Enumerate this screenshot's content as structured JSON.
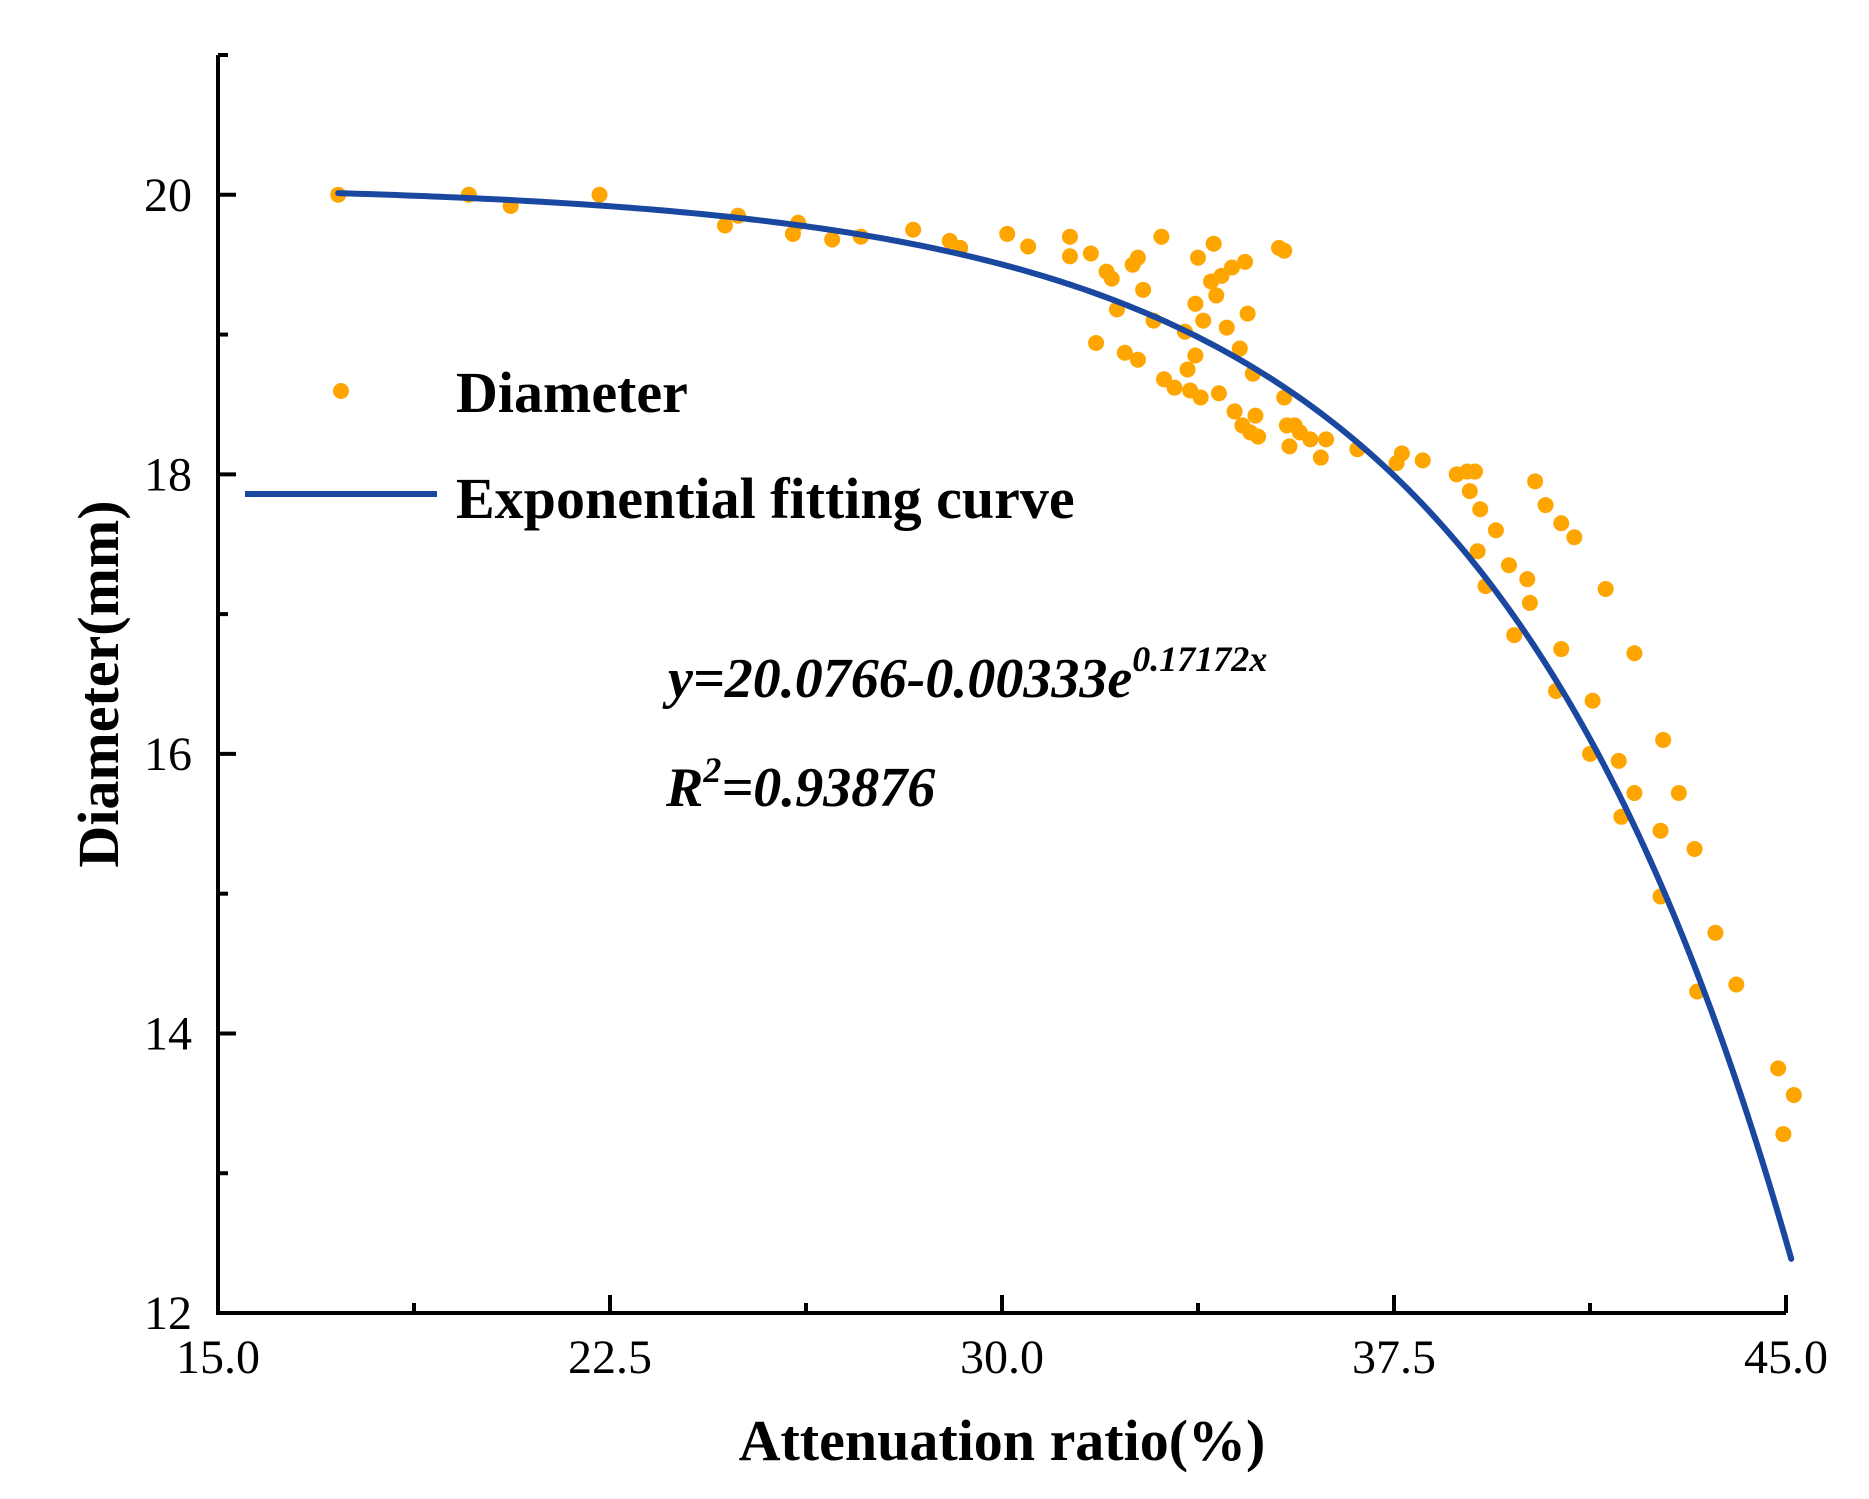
{
  "chart_data": {
    "type": "scatter",
    "title": "",
    "xlabel": "Attenuation ratio(%)",
    "ylabel": "Diameter(mm)",
    "xlim": [
      15.0,
      45.0
    ],
    "ylim": [
      12,
      21
    ],
    "x_ticks": [
      15.0,
      22.5,
      30.0,
      37.5,
      45.0
    ],
    "x_tick_labels": [
      "15.0",
      "22.5",
      "30.0",
      "37.5",
      "45.0"
    ],
    "y_ticks": [
      12,
      14,
      16,
      18,
      20
    ],
    "y_tick_labels": [
      "12",
      "14",
      "16",
      "18",
      "20"
    ],
    "grid": false,
    "legend_position": "upper-left",
    "series": [
      {
        "name": "Diameter",
        "kind": "scatter",
        "color": "#FFA500",
        "points": [
          [
            17.3,
            20.0
          ],
          [
            19.8,
            20.0
          ],
          [
            20.6,
            19.92
          ],
          [
            22.3,
            20.0
          ],
          [
            24.7,
            19.78
          ],
          [
            24.95,
            19.85
          ],
          [
            26.0,
            19.72
          ],
          [
            26.1,
            19.8
          ],
          [
            26.75,
            19.68
          ],
          [
            27.3,
            19.7
          ],
          [
            28.3,
            19.75
          ],
          [
            29.0,
            19.67
          ],
          [
            29.2,
            19.62
          ],
          [
            30.1,
            19.72
          ],
          [
            30.5,
            19.63
          ],
          [
            31.3,
            19.7
          ],
          [
            31.3,
            19.56
          ],
          [
            31.7,
            19.58
          ],
          [
            31.8,
            18.94
          ],
          [
            32.0,
            19.45
          ],
          [
            32.1,
            19.4
          ],
          [
            32.2,
            19.18
          ],
          [
            32.35,
            18.87
          ],
          [
            32.5,
            19.5
          ],
          [
            32.6,
            19.55
          ],
          [
            32.6,
            18.82
          ],
          [
            32.7,
            19.32
          ],
          [
            32.9,
            19.1
          ],
          [
            33.05,
            19.7
          ],
          [
            33.1,
            18.68
          ],
          [
            33.3,
            18.62
          ],
          [
            33.5,
            19.02
          ],
          [
            33.55,
            18.75
          ],
          [
            33.6,
            18.6
          ],
          [
            33.7,
            19.22
          ],
          [
            33.7,
            18.85
          ],
          [
            33.75,
            19.55
          ],
          [
            33.8,
            18.55
          ],
          [
            33.85,
            19.1
          ],
          [
            34.0,
            19.38
          ],
          [
            34.05,
            19.65
          ],
          [
            34.1,
            19.28
          ],
          [
            34.15,
            18.58
          ],
          [
            34.2,
            19.42
          ],
          [
            34.3,
            19.05
          ],
          [
            34.4,
            19.48
          ],
          [
            34.45,
            18.45
          ],
          [
            34.55,
            18.9
          ],
          [
            34.6,
            18.35
          ],
          [
            34.65,
            19.52
          ],
          [
            34.7,
            19.15
          ],
          [
            34.75,
            18.3
          ],
          [
            34.8,
            18.72
          ],
          [
            34.85,
            18.42
          ],
          [
            34.9,
            18.27
          ],
          [
            35.3,
            19.62
          ],
          [
            35.4,
            19.6
          ],
          [
            35.4,
            18.55
          ],
          [
            35.45,
            18.35
          ],
          [
            35.5,
            18.2
          ],
          [
            35.6,
            18.35
          ],
          [
            35.7,
            18.3
          ],
          [
            35.9,
            18.25
          ],
          [
            36.1,
            18.12
          ],
          [
            36.2,
            18.25
          ],
          [
            36.8,
            18.18
          ],
          [
            37.55,
            18.08
          ],
          [
            37.65,
            18.15
          ],
          [
            38.05,
            18.1
          ],
          [
            38.7,
            18.0
          ],
          [
            38.9,
            18.02
          ],
          [
            38.95,
            17.88
          ],
          [
            39.05,
            18.02
          ],
          [
            39.1,
            17.45
          ],
          [
            39.15,
            17.75
          ],
          [
            39.25,
            17.2
          ],
          [
            39.45,
            17.6
          ],
          [
            39.7,
            17.35
          ],
          [
            39.8,
            16.85
          ],
          [
            40.05,
            17.25
          ],
          [
            40.1,
            17.08
          ],
          [
            40.2,
            17.95
          ],
          [
            40.4,
            17.78
          ],
          [
            40.6,
            16.45
          ],
          [
            40.7,
            16.75
          ],
          [
            40.7,
            17.65
          ],
          [
            40.95,
            17.55
          ],
          [
            41.25,
            16.0
          ],
          [
            41.3,
            16.38
          ],
          [
            41.55,
            17.18
          ],
          [
            41.8,
            15.95
          ],
          [
            41.85,
            15.55
          ],
          [
            42.1,
            15.72
          ],
          [
            42.1,
            16.72
          ],
          [
            42.6,
            15.45
          ],
          [
            42.6,
            14.98
          ],
          [
            42.65,
            16.1
          ],
          [
            42.95,
            15.72
          ],
          [
            43.25,
            15.32
          ],
          [
            43.3,
            14.3
          ],
          [
            43.65,
            14.72
          ],
          [
            44.05,
            14.35
          ],
          [
            44.85,
            13.75
          ],
          [
            44.95,
            13.28
          ],
          [
            45.15,
            13.56
          ]
        ]
      },
      {
        "name": "Exponential fitting curve",
        "kind": "line",
        "color": "#1A47A0",
        "function": "y=20.0766-0.00333*exp(0.17172*x)",
        "x_range": [
          17.3,
          45.1
        ],
        "a": 20.0766,
        "b": 0.00333,
        "c": 0.17172
      }
    ],
    "annotations": {
      "equation_main": "y=20.0766-0.00333e",
      "equation_exp": "0.17172x",
      "r2_prefix": "R",
      "r2_sup": "2",
      "r2_value": "=0.93876"
    }
  }
}
